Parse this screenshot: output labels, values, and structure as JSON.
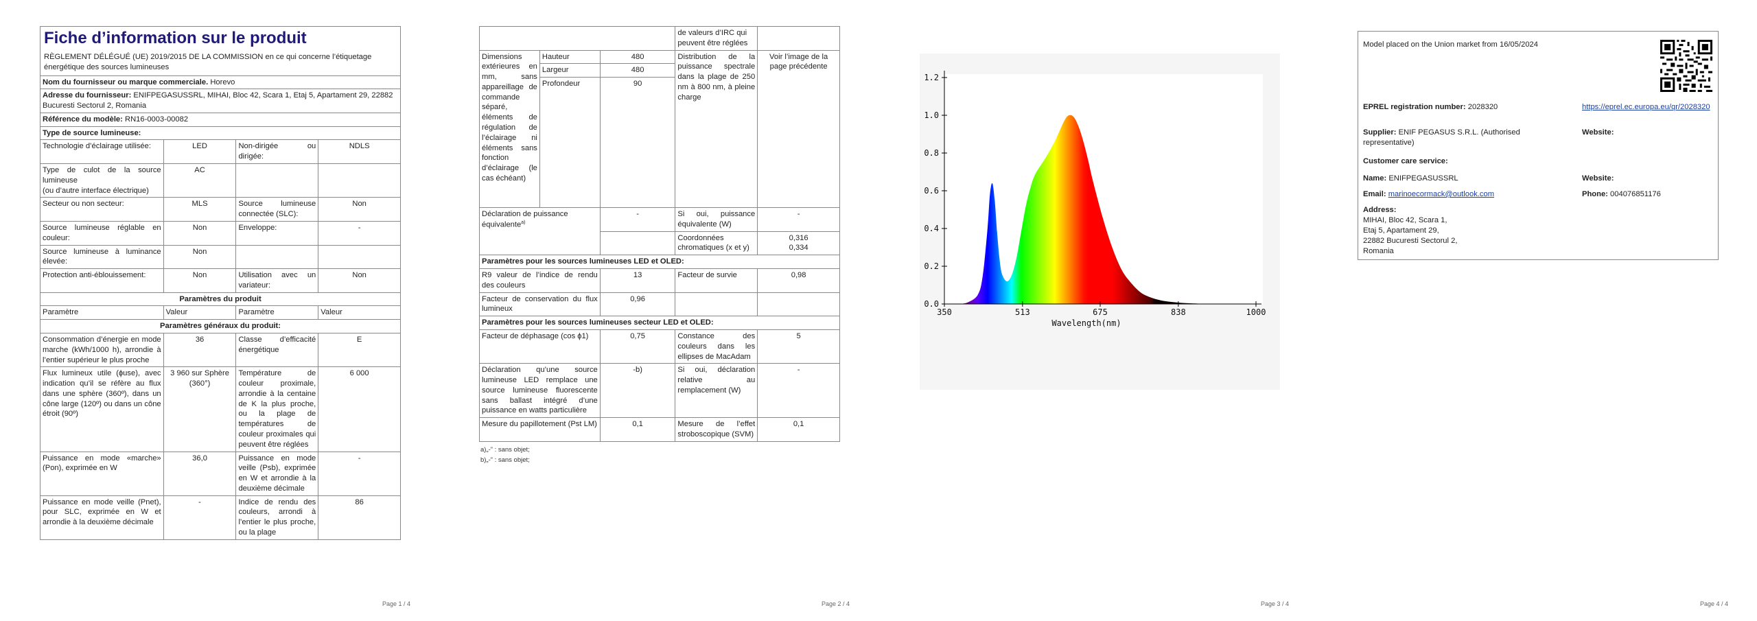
{
  "p1": {
    "title": "Fiche d’information sur le produit",
    "regulation": "RÈGLEMENT DÉLÉGUÉ (UE) 2019/2015 DE LA COMMISSION en ce qui concerne l’étiquetage énergétique des sources lumineuses",
    "supplier_label": "Nom du fournisseur ou marque commerciale.",
    "supplier_value": "Horevo",
    "address_label": "Adresse du fournisseur:",
    "address_value": "ENIFPEGASUSSRL, MIHAI, Bloc 42, Scara 1, Etaj 5, Apartament 29, 22882 Bucuresti Sectorul 2, Romania",
    "model_label": "Référence du modèle:",
    "model_value": "RN16-0003-00082",
    "type_heading": "Type de source lumineuse:",
    "type_rows": [
      [
        "Technologie d’éclairage utilisée:",
        "LED",
        "Non-dirigée ou dirigée:",
        "NDLS"
      ],
      [
        "Type de culot de la source lumineuse\n(ou d’autre interface électrique)",
        "AC",
        "",
        ""
      ],
      [
        "Secteur ou non secteur:",
        "MLS",
        "Source lumineuse connectée (SLC):",
        "Non"
      ],
      [
        "Source lumineuse réglable en couleur:",
        "Non",
        "Enveloppe:",
        "-"
      ],
      [
        "Source lumineuse à luminance élevée:",
        "Non",
        "",
        ""
      ],
      [
        "Protection anti-éblouissement:",
        "Non",
        "Utilisation avec un variateur:",
        "Non"
      ]
    ],
    "params_heading": "Paramètres du produit",
    "col_headers": [
      "Paramètre",
      "Valeur",
      "Paramètre",
      "Valeur"
    ],
    "general_heading": "Paramètres généraux du produit:",
    "general_rows": [
      [
        "Consommation d’énergie en mode marche (kWh/1000 h), arrondie à l’entier supérieur le plus proche",
        "36",
        "Classe d’efficacité énergétique",
        "E"
      ],
      [
        "Flux lumineux utile (ɸuse), avec indication qu’il se réfère au flux dans une sphère (360º), dans un cône large (120º) ou dans un cône étroit (90º)",
        "3 960 sur Sphère (360°)",
        "Température de couleur proximale, arrondie à la centaine de K la plus proche, ou la plage de températures de couleur proximales qui peuvent être réglées",
        "6 000"
      ],
      [
        "Puissance en mode «marche» (Pon), exprimée en W",
        "36,0",
        "Puissance en mode veille (Psb), exprimée en W et arrondie à la deuxième décimale",
        "-"
      ],
      [
        "Puissance en mode veille (Pnet), pour SLC, exprimée en W et arrondie à la deuxième décimale",
        "-",
        "Indice de rendu des couleurs, arrondi à l’entier le plus proche, ou la plage",
        "86"
      ]
    ],
    "page_label": "Page 1 / 4"
  },
  "p2": {
    "top_cont": "de valeurs d’IRC qui peuvent être réglées",
    "dim_label": "Dimensions extérieures en mm, sans appareillage de commande séparé, éléments de régulation de l’éclairage ni éléments sans fonction d’éclairage (le cas échéant)",
    "dims": [
      [
        "Hauteur",
        "480"
      ],
      [
        "Largeur",
        "480"
      ],
      [
        "Profondeur",
        "90"
      ]
    ],
    "spectral_label": "Distribution de la puissance spectrale dans la plage de 250 nm à 800 nm, à pleine charge",
    "spectral_value": "Voir l’image de la page précédente",
    "equiv_label": "Déclaration de puissance équivalente",
    "equiv_sup": "a)",
    "equiv_value": "-",
    "equiv2_label": "Si oui, puissance équivalente (W)",
    "equiv2_value": "-",
    "chroma_label": "Coordonnées chromatiques (x et y)",
    "chroma_x": "0,316",
    "chroma_y": "0,334",
    "led_heading": "Paramètres pour les sources lumineuses LED et OLED:",
    "led_rows": [
      [
        "R9 valeur de l’indice de rendu des couleurs",
        "13",
        "Facteur de survie",
        "0,98"
      ],
      [
        "Facteur de conservation du flux lumineux",
        "0,96",
        "",
        ""
      ]
    ],
    "mains_heading": "Paramètres pour les sources lumineuses secteur LED et OLED:",
    "mains_rows": [
      [
        "Facteur de déphasage (cos ɸ1)",
        "0,75",
        "Constance des couleurs dans les ellipses de MacAdam",
        "5"
      ],
      [
        "Déclaration qu’une source lumineuse LED remplace une source lumineuse fluorescente sans ballast intégré d’une puissance en watts particulière",
        "-b)",
        "Si oui, déclaration relative au remplacement (W)",
        "-"
      ],
      [
        "Mesure du papillotement (Pst LM)",
        "0,1",
        "Mesure de l’effet stroboscopique (SVM)",
        "0,1"
      ]
    ],
    "footnote_a": "a)„-” : sans objet;",
    "footnote_b": "b)„-” : sans objet;",
    "page_label": "Page 2 / 4"
  },
  "p3": {
    "page_label": "Page 3 / 4"
  },
  "chart_data": {
    "type": "area",
    "title": "",
    "xlabel": "Wavelength(nm)",
    "ylabel": "",
    "xlim": [
      350,
      1000
    ],
    "ylim": [
      0,
      1.2
    ],
    "xticks": [
      "350",
      "513",
      "675",
      "838",
      "1000"
    ],
    "yticks": [
      "0.0",
      "0.2",
      "0.4",
      "0.6",
      "0.8",
      "1.0",
      "1.2"
    ],
    "grid": false,
    "series": [
      {
        "x": [
          350,
          380,
          400,
          420,
          430,
          440,
          445,
          450,
          455,
          460,
          465,
          470,
          480,
          490,
          500,
          510,
          520,
          530,
          540,
          560,
          580,
          600,
          610,
          620,
          630,
          640,
          650,
          660,
          680,
          700,
          720,
          740,
          760,
          780,
          800,
          820,
          850,
          880,
          900,
          950,
          1000
        ],
        "values": [
          0,
          0,
          0.01,
          0.05,
          0.15,
          0.4,
          0.58,
          0.64,
          0.55,
          0.38,
          0.24,
          0.16,
          0.12,
          0.15,
          0.24,
          0.38,
          0.52,
          0.62,
          0.69,
          0.77,
          0.86,
          0.97,
          1.0,
          0.99,
          0.94,
          0.86,
          0.76,
          0.65,
          0.46,
          0.3,
          0.18,
          0.11,
          0.06,
          0.035,
          0.02,
          0.012,
          0.005,
          0.002,
          0.001,
          0,
          0
        ]
      }
    ]
  },
  "p4": {
    "market_text": "Model placed on the Union market from 16/05/2024",
    "eprel_label": "EPREL registration number:",
    "eprel_value": "2028320",
    "eprel_link": "https://eprel.ec.europa.eu/qr/2028320",
    "supplier_label": "Supplier:",
    "supplier_value": "ENIF PEGASUS S.R.L. (Authorised representative)",
    "website_label": "Website:",
    "website_value": "",
    "care_heading": "Customer care service:",
    "name_label": "Name:",
    "name_value": "ENIFPEGASUSSRL",
    "website2_label": "Website:",
    "email_label": "Email:",
    "email_value": "marinoecormack@outlook.com",
    "phone_label": "Phone:",
    "phone_value": "004076851176",
    "address_label": "Address:",
    "address_lines": [
      "MIHAI, Bloc 42, Scara 1,",
      "Etaj 5, Apartament 29,",
      "22882 Bucuresti Sectorul 2,",
      "Romania"
    ],
    "page_label": "Page 4 / 4"
  }
}
